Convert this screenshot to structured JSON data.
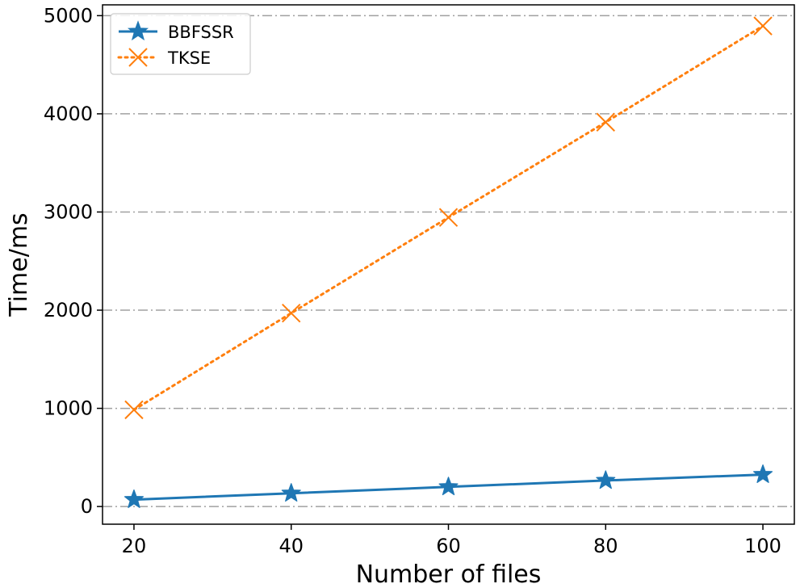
{
  "chart_data": {
    "type": "line",
    "x": [
      20,
      40,
      60,
      80,
      100
    ],
    "xlabel": "Number of files",
    "ylabel": "Time/ms",
    "xlim": [
      16,
      104
    ],
    "ylim": [
      -180,
      5110
    ],
    "xticks": [
      "20",
      "40",
      "60",
      "80",
      "100"
    ],
    "yticks": [
      "0",
      "1000",
      "2000",
      "3000",
      "4000",
      "5000"
    ],
    "grid": "horizontal dash-dot",
    "legend_position": "upper-left",
    "series": [
      {
        "name": "BBFSSR",
        "values": [
          70,
          135,
          200,
          265,
          325
        ],
        "color": "#1f77b4",
        "marker": "star",
        "line": "solid"
      },
      {
        "name": "TKSE",
        "values": [
          985,
          1970,
          2945,
          3915,
          4895
        ],
        "color": "#ff7f0e",
        "marker": "x",
        "line": "dotted"
      }
    ]
  }
}
